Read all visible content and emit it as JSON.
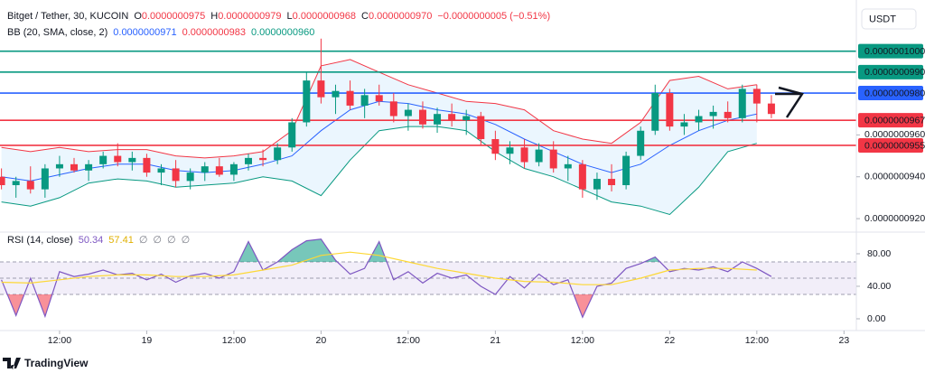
{
  "chart_data": [
    {
      "type": "candlestick",
      "title": "Bitget / Tether, 30, KUCOIN",
      "ohlc": [
        {
          "key": "O",
          "text": "0.0000000975"
        },
        {
          "key": "H",
          "text": "0.0000000979"
        },
        {
          "key": "L",
          "text": "0.0000000968"
        },
        {
          "key": "C",
          "text": "0.0000000970"
        }
      ],
      "change": "−0.0000000005 (−0.51%)",
      "indicator_title": "BB (20, SMA, close, 2)",
      "indicator_values": [
        {
          "text": "0.0000000971",
          "color": "#2962ff"
        },
        {
          "text": "0.0000000983",
          "color": "#f23645"
        },
        {
          "text": "0.0000000960",
          "color": "#089981"
        }
      ],
      "currency": "USDT",
      "up_color": "#089981",
      "down_color": "#f23645",
      "x": [
        4,
        6,
        8,
        10,
        12,
        14,
        16,
        18,
        20,
        22,
        24,
        26,
        28,
        30,
        32,
        34,
        36,
        38,
        40,
        42,
        44,
        46,
        48,
        50,
        52,
        54,
        56,
        58,
        60,
        62,
        64,
        66,
        68,
        70,
        72,
        74,
        76,
        78,
        80,
        82,
        84,
        86,
        88,
        90,
        92,
        94,
        96,
        98,
        100,
        102,
        104,
        106,
        108,
        110
      ],
      "open": [
        9.4e-08,
        9.36e-08,
        9.38e-08,
        9.34e-08,
        9.44e-08,
        9.46e-08,
        9.43e-08,
        9.46e-08,
        9.5e-08,
        9.47e-08,
        9.49e-08,
        9.42e-08,
        9.44e-08,
        9.38e-08,
        9.42e-08,
        9.45e-08,
        9.41e-08,
        9.46e-08,
        9.49e-08,
        9.48e-08,
        9.54e-08,
        9.66e-08,
        9.86e-08,
        9.78e-08,
        9.81e-08,
        9.74e-08,
        9.79e-08,
        9.76e-08,
        9.69e-08,
        9.72e-08,
        9.65e-08,
        9.7e-08,
        9.67e-08,
        9.69e-08,
        9.58e-08,
        9.51e-08,
        9.54e-08,
        9.47e-08,
        9.53e-08,
        9.44e-08,
        9.46e-08,
        9.34e-08,
        9.39e-08,
        9.36e-08,
        9.5e-08,
        9.62e-08,
        9.8e-08,
        9.64e-08,
        9.66e-08,
        9.69e-08,
        9.71e-08,
        9.68e-08,
        9.82e-08,
        9.75e-08
      ],
      "high": [
        9.44e-08,
        9.4e-08,
        9.45e-08,
        9.46e-08,
        9.5e-08,
        9.49e-08,
        9.48e-08,
        9.52e-08,
        9.56e-08,
        9.52e-08,
        9.51e-08,
        9.46e-08,
        9.48e-08,
        9.44e-08,
        9.47e-08,
        9.49e-08,
        9.47e-08,
        9.51e-08,
        9.53e-08,
        9.56e-08,
        9.68e-08,
        9.9e-08,
        1.006e-07,
        9.84e-08,
        9.86e-08,
        9.82e-08,
        9.84e-08,
        9.8e-08,
        9.75e-08,
        9.76e-08,
        9.73e-08,
        9.75e-08,
        9.72e-08,
        9.71e-08,
        9.62e-08,
        9.57e-08,
        9.58e-08,
        9.56e-08,
        9.57e-08,
        9.5e-08,
        9.48e-08,
        9.42e-08,
        9.46e-08,
        9.52e-08,
        9.64e-08,
        9.84e-08,
        9.82e-08,
        9.7e-08,
        9.72e-08,
        9.74e-08,
        9.76e-08,
        9.84e-08,
        9.84e-08,
        9.79e-08
      ],
      "low": [
        9.34e-08,
        9.3e-08,
        9.32e-08,
        9.3e-08,
        9.4e-08,
        9.42e-08,
        9.38e-08,
        9.44e-08,
        9.45e-08,
        9.43e-08,
        9.4e-08,
        9.36e-08,
        9.35e-08,
        9.34e-08,
        9.38e-08,
        9.4e-08,
        9.38e-08,
        9.43e-08,
        9.45e-08,
        9.46e-08,
        9.52e-08,
        9.64e-08,
        9.75e-08,
        9.7e-08,
        9.72e-08,
        9.68e-08,
        9.74e-08,
        9.66e-08,
        9.62e-08,
        9.63e-08,
        9.61e-08,
        9.64e-08,
        9.6e-08,
        9.55e-08,
        9.48e-08,
        9.46e-08,
        9.44e-08,
        9.45e-08,
        9.42e-08,
        9.38e-08,
        9.3e-08,
        9.29e-08,
        9.33e-08,
        9.34e-08,
        9.48e-08,
        9.6e-08,
        9.62e-08,
        9.6e-08,
        9.62e-08,
        9.63e-08,
        9.66e-08,
        9.66e-08,
        9.66e-08,
        9.68e-08
      ],
      "close": [
        9.36e-08,
        9.38e-08,
        9.34e-08,
        9.44e-08,
        9.46e-08,
        9.43e-08,
        9.46e-08,
        9.5e-08,
        9.47e-08,
        9.49e-08,
        9.42e-08,
        9.44e-08,
        9.38e-08,
        9.42e-08,
        9.45e-08,
        9.41e-08,
        9.46e-08,
        9.49e-08,
        9.48e-08,
        9.54e-08,
        9.66e-08,
        9.86e-08,
        9.78e-08,
        9.81e-08,
        9.74e-08,
        9.79e-08,
        9.76e-08,
        9.69e-08,
        9.72e-08,
        9.65e-08,
        9.7e-08,
        9.67e-08,
        9.69e-08,
        9.58e-08,
        9.51e-08,
        9.54e-08,
        9.47e-08,
        9.53e-08,
        9.44e-08,
        9.46e-08,
        9.34e-08,
        9.39e-08,
        9.36e-08,
        9.5e-08,
        9.62e-08,
        9.8e-08,
        9.64e-08,
        9.66e-08,
        9.69e-08,
        9.71e-08,
        9.68e-08,
        9.82e-08,
        9.75e-08,
        9.7e-08
      ],
      "bands": {
        "x": [
          4,
          8,
          12,
          16,
          20,
          24,
          28,
          32,
          36,
          40,
          44,
          48,
          52,
          56,
          60,
          64,
          68,
          72,
          76,
          80,
          84,
          88,
          92,
          96,
          100,
          104,
          108
        ],
        "upper": [
          9.54e-08,
          9.52e-08,
          9.54e-08,
          9.52e-08,
          9.53e-08,
          9.53e-08,
          9.5e-08,
          9.49e-08,
          9.5e-08,
          9.52e-08,
          9.62e-08,
          9.93e-08,
          9.96e-08,
          9.9e-08,
          9.84e-08,
          9.8e-08,
          9.76e-08,
          9.75e-08,
          9.72e-08,
          9.62e-08,
          9.58e-08,
          9.56e-08,
          9.66e-08,
          9.86e-08,
          9.88e-08,
          9.82e-08,
          9.84e-08
        ],
        "basis": [
          9.4e-08,
          9.38e-08,
          9.41e-08,
          9.44e-08,
          9.46e-08,
          9.46e-08,
          9.43e-08,
          9.42e-08,
          9.43e-08,
          9.46e-08,
          9.5e-08,
          9.62e-08,
          9.72e-08,
          9.76e-08,
          9.75e-08,
          9.72e-08,
          9.7e-08,
          9.65e-08,
          9.58e-08,
          9.52e-08,
          9.46e-08,
          9.42e-08,
          9.46e-08,
          9.55e-08,
          9.62e-08,
          9.67e-08,
          9.7e-08
        ],
        "lower": [
          9.28e-08,
          9.26e-08,
          9.3e-08,
          9.37e-08,
          9.39e-08,
          9.38e-08,
          9.35e-08,
          9.36e-08,
          9.37e-08,
          9.4e-08,
          9.38e-08,
          9.31e-08,
          9.48e-08,
          9.62e-08,
          9.64e-08,
          9.64e-08,
          9.62e-08,
          9.52e-08,
          9.44e-08,
          9.4e-08,
          9.34e-08,
          9.28e-08,
          9.26e-08,
          9.22e-08,
          9.35e-08,
          9.52e-08,
          9.56e-08
        ],
        "upper_color": "#f23645",
        "basis_color": "#2962ff",
        "lower_color": "#089981",
        "fill": "rgba(33,150,243,0.09)"
      },
      "levels": [
        {
          "value": 1e-07,
          "label": "0.0000001000",
          "color": "#089981"
        },
        {
          "value": 9.9e-08,
          "label": "0.0000000990",
          "color": "#089981"
        },
        {
          "value": 9.8e-08,
          "label": "0.0000000980",
          "color": "#2962ff"
        },
        {
          "value": 9.67e-08,
          "label": "0.0000000967",
          "color": "#f23645"
        },
        {
          "value": 9.55e-08,
          "label": "0.0000000955",
          "color": "#f23645"
        }
      ],
      "xlim": [
        3.8,
        121.7
      ],
      "ylim": [
        9.14e-08,
        1.021e-07
      ],
      "yticks": [
        {
          "value": 9.6e-08,
          "label": "0.0000000960"
        },
        {
          "value": 9.4e-08,
          "label": "0.0000000940"
        },
        {
          "value": 9.2e-08,
          "label": "0.0000000920"
        }
      ]
    },
    {
      "type": "line",
      "title": "RSI (14, close)",
      "legend_values": [
        {
          "text": "50.34",
          "color": "#7e57c2"
        },
        {
          "text": "57.41",
          "color": "#e0b000"
        },
        {
          "text": "∅",
          "color": "#787b86"
        },
        {
          "text": "∅",
          "color": "#787b86"
        },
        {
          "text": "∅",
          "color": "#787b86"
        },
        {
          "text": "∅",
          "color": "#787b86"
        }
      ],
      "series": [
        {
          "color": "#7e57c2",
          "x": [
            4,
            6,
            8,
            10,
            12,
            14,
            16,
            18,
            20,
            22,
            24,
            26,
            28,
            30,
            32,
            34,
            36,
            38,
            40,
            42,
            44,
            46,
            48,
            50,
            52,
            54,
            56,
            58,
            60,
            62,
            64,
            66,
            68,
            70,
            72,
            74,
            76,
            78,
            80,
            82,
            84,
            86,
            88,
            90,
            92,
            94,
            96,
            98,
            100,
            102,
            104,
            106,
            108,
            110
          ],
          "values": [
            48,
            4,
            50,
            3,
            58,
            52,
            55,
            60,
            54,
            56,
            48,
            55,
            45,
            53,
            56,
            50,
            58,
            95,
            60,
            70,
            85,
            96,
            98,
            72,
            55,
            62,
            95,
            48,
            58,
            44,
            56,
            50,
            54,
            40,
            30,
            52,
            38,
            55,
            42,
            48,
            2,
            40,
            44,
            62,
            68,
            76,
            58,
            62,
            60,
            64,
            58,
            70,
            62,
            52
          ]
        },
        {
          "color": "#fdd835",
          "x": [
            4,
            8,
            12,
            16,
            20,
            24,
            28,
            32,
            36,
            40,
            44,
            48,
            52,
            56,
            60,
            64,
            68,
            72,
            76,
            80,
            84,
            88,
            92,
            96,
            100,
            104,
            108
          ],
          "values": [
            45,
            44,
            48,
            52,
            54,
            54,
            52,
            52,
            54,
            60,
            66,
            78,
            82,
            78,
            70,
            62,
            56,
            50,
            46,
            45,
            42,
            42,
            50,
            60,
            62,
            62,
            60
          ]
        }
      ],
      "overbought": 70,
      "midline": 50,
      "oversold": 30,
      "overbought_fill": "rgba(8,153,129,0.55)",
      "oversold_fill": "rgba(242,54,69,0.55)",
      "band_fill": "rgba(126,87,194,0.10)",
      "xlim": [
        3.8,
        121.7
      ],
      "ylim": [
        -27.8,
        103.3
      ],
      "yticks": [
        {
          "value": 80,
          "label": "80.00"
        },
        {
          "value": 40,
          "label": "40.00"
        },
        {
          "value": 0,
          "label": "0.00"
        }
      ],
      "xticks": [
        {
          "value": 12,
          "label": "12:00"
        },
        {
          "value": 24,
          "label": "19"
        },
        {
          "value": 36,
          "label": "12:00"
        },
        {
          "value": 48,
          "label": "20"
        },
        {
          "value": 60,
          "label": "12:00"
        },
        {
          "value": 72,
          "label": "21"
        },
        {
          "value": 84,
          "label": "12:00"
        },
        {
          "value": 96,
          "label": "22"
        },
        {
          "value": 108,
          "label": "12:00"
        },
        {
          "value": 120,
          "label": "23"
        }
      ]
    }
  ],
  "footer": {
    "brand": "TradingView"
  }
}
